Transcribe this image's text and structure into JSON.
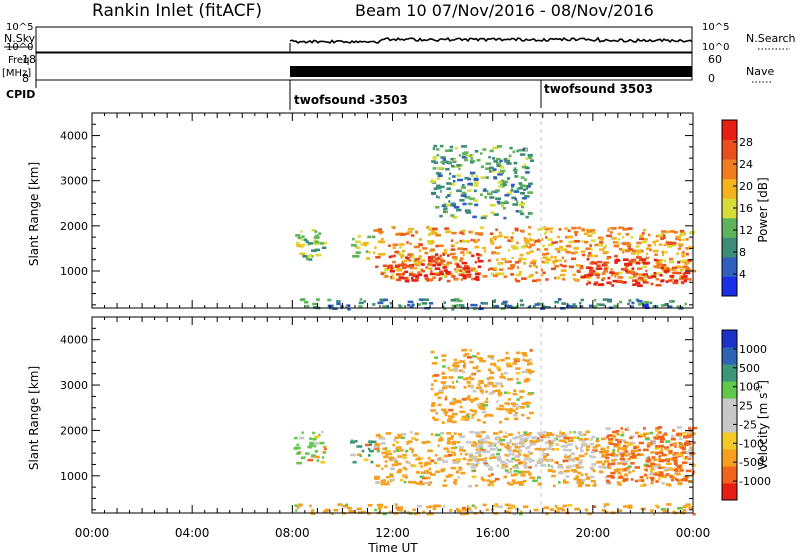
{
  "header": {
    "station": "Rankin Inlet (fitACF)",
    "beam_info": "Beam 10  07/Nov/2016 - 08/Nov/2016"
  },
  "top_panels": {
    "nsky_label": "N.Sky",
    "nsky_ticks": [
      "10^5",
      "10^0"
    ],
    "nsearch_label": "N.Search",
    "nsearch_ticks": [
      "10^5",
      "10^0"
    ],
    "freq_label": "Freq.",
    "freq_unit": "[MHz]",
    "freq_ticks": [
      "18",
      "8"
    ],
    "nave_label": "Nave",
    "nave_ticks": [
      "60",
      "0"
    ],
    "cpid_label": "CPID",
    "cpid_entries": [
      {
        "name": "twofsound -3503",
        "start_hour": 8
      },
      {
        "name": "twofsound 3503",
        "start_hour": 18
      }
    ]
  },
  "colors": {
    "power_scale": [
      "#1a2ee6",
      "#2f5fbf",
      "#3c8c78",
      "#5fb35a",
      "#d8dc3a",
      "#f5b41e",
      "#f07d1e",
      "#e8501e",
      "#e61e14"
    ],
    "velocity_scale": [
      "#e61e14",
      "#f0641e",
      "#f5a01e",
      "#f5c828",
      "#c8c8c8",
      "#c8c8c8",
      "#5fc84b",
      "#3c9678",
      "#2f64b4",
      "#1a32c8"
    ]
  },
  "chart_data": [
    {
      "type": "heatmap",
      "title": "",
      "xlabel": "",
      "ylabel": "Slant Range [km]",
      "xlim_hours": [
        0,
        24
      ],
      "ylim_km": [
        180,
        4500
      ],
      "y_ticks": [
        "4000",
        "3000",
        "2000",
        "1000"
      ],
      "colorbar": {
        "label": "Power [dB]",
        "ticks": [
          "28",
          "24",
          "20",
          "16",
          "12",
          "8",
          "4"
        ],
        "range": [
          0,
          30
        ]
      },
      "regions": [
        {
          "x": [
            8.0,
            9.3
          ],
          "y": [
            1250,
            2000
          ],
          "value": 12
        },
        {
          "x": [
            10.3,
            11.2
          ],
          "y": [
            1300,
            1800
          ],
          "value": 14
        },
        {
          "x": [
            11.2,
            24.0
          ],
          "y": [
            800,
            2000
          ],
          "value": 20
        },
        {
          "x": [
            11.8,
            15.5
          ],
          "y": [
            800,
            1400
          ],
          "value": 28
        },
        {
          "x": [
            19.5,
            23.8
          ],
          "y": [
            700,
            1300
          ],
          "value": 28
        },
        {
          "x": [
            13.5,
            17.5
          ],
          "y": [
            2200,
            3800
          ],
          "value": 10
        },
        {
          "x": [
            8.0,
            24.0
          ],
          "y": [
            180,
            400
          ],
          "value": 8
        }
      ]
    },
    {
      "type": "heatmap",
      "title": "",
      "xlabel": "Time UT",
      "ylabel": "Slant Range [km]",
      "xlim_hours": [
        0,
        24
      ],
      "ylim_km": [
        180,
        4500
      ],
      "x_ticks": [
        "00:00",
        "04:00",
        "08:00",
        "12:00",
        "16:00",
        "20:00",
        "00:00"
      ],
      "y_ticks": [
        "4000",
        "3000",
        "2000",
        "1000"
      ],
      "colorbar": {
        "label": "Velocity [m s^-1]",
        "ticks": [
          "1000",
          "500",
          "100",
          "25",
          "-25",
          "-100",
          "-500",
          "-1000"
        ]
      },
      "regions": [
        {
          "x": [
            8.0,
            9.3
          ],
          "y": [
            1250,
            2000
          ],
          "value": 100
        },
        {
          "x": [
            10.3,
            11.2
          ],
          "y": [
            1300,
            1800
          ],
          "value": 500
        },
        {
          "x": [
            11.2,
            24.0
          ],
          "y": [
            800,
            2000
          ],
          "value": -100
        },
        {
          "x": [
            15.0,
            20.0
          ],
          "y": [
            1200,
            2000
          ],
          "value": 0
        },
        {
          "x": [
            20.5,
            24.0
          ],
          "y": [
            900,
            2100
          ],
          "value": -500
        },
        {
          "x": [
            13.5,
            17.5
          ],
          "y": [
            2200,
            3800
          ],
          "value": -100
        },
        {
          "x": [
            8.0,
            24.0
          ],
          "y": [
            180,
            400
          ],
          "value": -100
        }
      ]
    }
  ]
}
